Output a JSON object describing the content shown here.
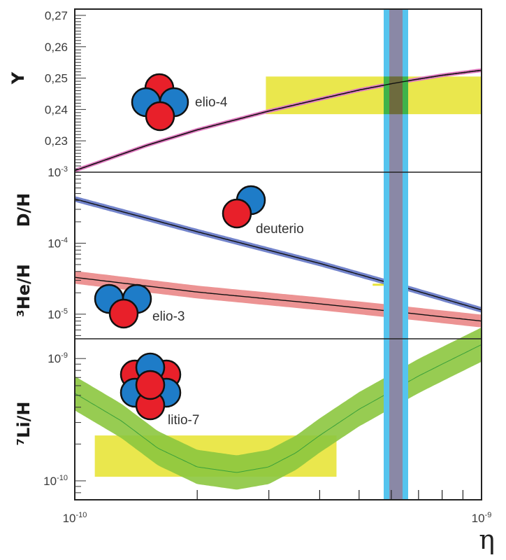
{
  "chart_data": {
    "type": "line",
    "title": "",
    "xlabel": "η",
    "x_scale": "log",
    "xlim": [
      1e-10,
      1e-09
    ],
    "x_tick_labels": [
      {
        "value": 1e-10,
        "base": "10",
        "exp": "-10"
      },
      {
        "value": 1e-09,
        "base": "10",
        "exp": "-9"
      }
    ],
    "x_minor_ticks": [
      2e-10,
      3e-10,
      4e-10,
      5e-10,
      6e-10,
      7e-10,
      8e-10,
      9e-10
    ],
    "eta_band": {
      "outer": [
        5.4e-10,
        6.3e-10
      ],
      "inner": [
        5.7e-10,
        6.1e-10
      ],
      "outer_color": "#55c4ee",
      "inner_color": "#8a88a6"
    },
    "panels": [
      {
        "id": "helium4",
        "ylabel": "Y",
        "y_scale": "linear",
        "ylim": [
          0.22,
          0.272
        ],
        "y_tick_labels": [
          "0,23",
          "0,24",
          "0,25",
          "0,26",
          "0,27"
        ],
        "y_tick_values": [
          0.23,
          0.24,
          0.25,
          0.26,
          0.27
        ],
        "series": [
          {
            "name": "elio-4",
            "color": "#e07ac0",
            "x": [
              1e-10,
              1.5e-10,
              2e-10,
              3e-10,
              4e-10,
              5e-10,
              6e-10,
              7e-10,
              8e-10,
              1e-09
            ],
            "y": [
              0.2205,
              0.2285,
              0.2335,
              0.2395,
              0.2433,
              0.2462,
              0.2482,
              0.2497,
              0.2509,
              0.2525
            ],
            "band": 0.0006
          }
        ],
        "obs_box": {
          "x": [
            2.95e-10,
            1e-09
          ],
          "y": [
            0.2385,
            0.2505
          ],
          "color": "#e8e43a"
        },
        "nucleus": {
          "label": "elio-4",
          "protons": 2,
          "neutrons": 2
        }
      },
      {
        "id": "deuterium-helium3",
        "ylabel_top": "D/H",
        "ylabel_bottom": "³He/H",
        "y_scale": "log",
        "ylim": [
          4.5e-06,
          0.001
        ],
        "y_tick_labels": [
          {
            "value": 0.001,
            "base": "10",
            "exp": "-3"
          },
          {
            "value": 0.0001,
            "base": "10",
            "exp": "-4"
          },
          {
            "value": 1e-05,
            "base": "10",
            "exp": "-5"
          }
        ],
        "series": [
          {
            "name": "deuterio",
            "color": "#5b6fc2",
            "x": [
              1e-10,
              2e-10,
              4e-10,
              6e-10,
              1e-09
            ],
            "y": [
              0.00042,
              0.000145,
              5.2e-05,
              2.7e-05,
              1.15e-05
            ],
            "band": 0.04
          },
          {
            "name": "elio-3",
            "color": "#e98080",
            "x": [
              1e-10,
              2e-10,
              4e-10,
              6e-10,
              1e-09
            ],
            "y": [
              3.3e-05,
              2.05e-05,
              1.4e-05,
              1.1e-05,
              8e-06
            ],
            "band": 0.09
          }
        ],
        "obs_marker": {
          "x": [
            5.4e-10,
            6.3e-10
          ],
          "y": 2.6e-05,
          "color": "#e8e43a"
        },
        "nuclei": [
          {
            "label": "deuterio",
            "protons": 1,
            "neutrons": 1
          },
          {
            "label": "elio-3",
            "protons": 2,
            "neutrons": 1
          }
        ]
      },
      {
        "id": "lithium7",
        "ylabel": "⁷Li/H",
        "y_scale": "log",
        "ylim": [
          7e-11,
          1.45e-09
        ],
        "y_tick_labels": [
          {
            "value": 1e-09,
            "base": "10",
            "exp": "-9"
          },
          {
            "value": 1e-10,
            "base": "10",
            "exp": "-10"
          }
        ],
        "series": [
          {
            "name": "litio-7",
            "color": "#8cc63f",
            "x": [
              1e-10,
              1.3e-10,
              1.6e-10,
              2e-10,
              2.5e-10,
              3e-10,
              3.5e-10,
              4e-10,
              5e-10,
              6e-10,
              7e-10,
              8e-10,
              1e-09
            ],
            "y": [
              5.2e-10,
              3.1e-10,
              1.85e-10,
              1.3e-10,
              1.17e-10,
              1.3e-10,
              1.7e-10,
              2.35e-10,
              3.85e-10,
              5.4e-10,
              7.2e-10,
              9e-10,
              1.3e-09
            ],
            "band": 0.14
          }
        ],
        "obs_box": {
          "x": [
            1.12e-10,
            4.4e-10
          ],
          "y": [
            1.08e-10,
            2.35e-10
          ],
          "color": "#e8e43a"
        },
        "nucleus": {
          "label": "litio-7",
          "protons": 3,
          "neutrons": 4
        }
      }
    ]
  },
  "colors": {
    "proton": "#e8202a",
    "neutron": "#1e7cc8",
    "outline": "#111111"
  }
}
